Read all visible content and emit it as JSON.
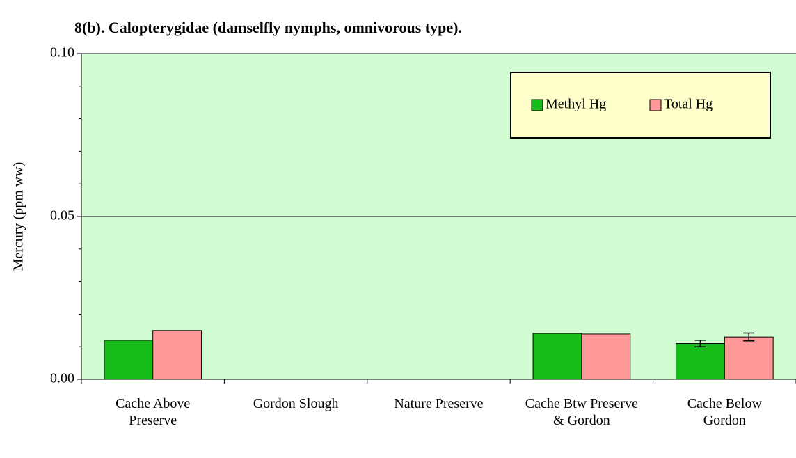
{
  "chart_data": {
    "type": "bar",
    "title": "8(b).  Calopterygidae (damselfly nymphs, omnivorous type).",
    "y_label": "Mercury (ppm ww)",
    "categories": [
      "Cache Above Preserve",
      "Gordon Slough",
      "Nature Preserve",
      "Cache Btw Preserve & Gordon",
      "Cache Below Gordon"
    ],
    "series": [
      {
        "name": "Methyl Hg",
        "color": "#18bc18",
        "values": [
          0.012,
          null,
          null,
          0.0141,
          0.011
        ],
        "errors": [
          null,
          null,
          null,
          null,
          0.001
        ]
      },
      {
        "name": "Total Hg",
        "color": "#ff9999",
        "values": [
          0.015,
          null,
          null,
          0.0139,
          0.013
        ],
        "errors": [
          null,
          null,
          null,
          null,
          0.0012
        ]
      }
    ],
    "ylim": [
      0,
      0.1
    ],
    "yticks": [
      {
        "value": 0,
        "label": "0.00"
      },
      {
        "value": 0.05,
        "label": "0.05"
      },
      {
        "value": 0.1,
        "label": "0.10"
      }
    ],
    "minor_yticks": [
      0.01,
      0.02,
      0.03,
      0.04,
      0.06,
      0.07,
      0.08,
      0.09
    ],
    "grid": true,
    "plot_background": "#d2fcd2",
    "legend_background": "#ffffcc",
    "legend_position": "upper right"
  }
}
